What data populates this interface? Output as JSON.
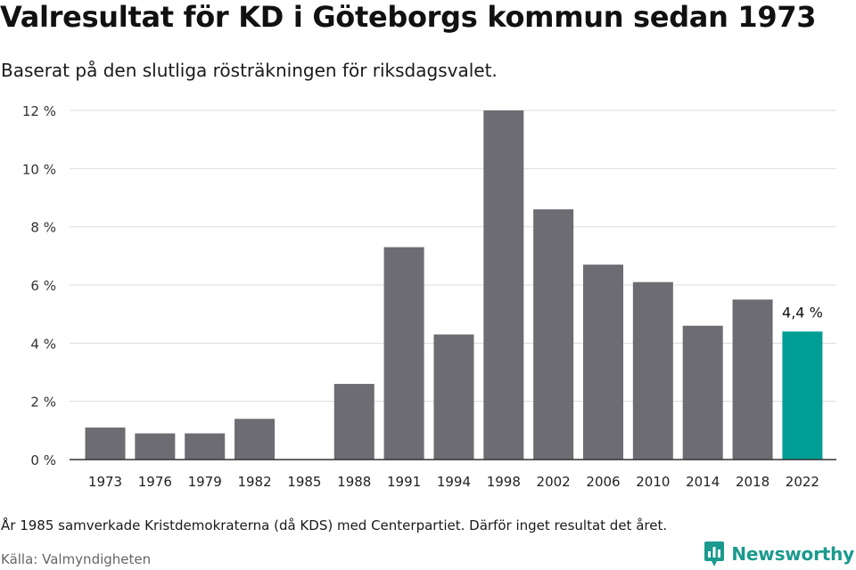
{
  "header": {
    "title": "Valresultat för KD i Göteborgs kommun sedan 1973",
    "subtitle": "Baserat på den slutliga rösträkningen för riksdagsvalet."
  },
  "chart_data": {
    "type": "bar",
    "title": "Valresultat för KD i Göteborgs kommun sedan 1973",
    "subtitle": "Baserat på den slutliga rösträkningen för riksdagsvalet.",
    "xlabel": "",
    "ylabel": "",
    "ylim": [
      0,
      12
    ],
    "yticks": [
      0,
      2,
      4,
      6,
      8,
      10,
      12
    ],
    "ytick_labels": [
      "0 %",
      "2 %",
      "4 %",
      "6 %",
      "8 %",
      "10 %",
      "12 %"
    ],
    "grid": true,
    "categories": [
      "1973",
      "1976",
      "1979",
      "1982",
      "1985",
      "1988",
      "1991",
      "1994",
      "1998",
      "2002",
      "2006",
      "2010",
      "2014",
      "2018",
      "2022"
    ],
    "values": [
      1.1,
      0.9,
      0.9,
      1.4,
      null,
      2.6,
      7.3,
      4.3,
      12.0,
      8.6,
      6.7,
      6.1,
      4.6,
      5.5,
      4.4
    ],
    "bar_color": "#6d6c72",
    "highlight_color": "#009e94",
    "highlight_index": 14,
    "annotation": "4,4 %"
  },
  "footer": {
    "note": "År 1985 samverkade Kristdemokraterna (då KDS) med Centerpartiet. Därför inget resultat det året.",
    "source": "Källa: Valmyndigheten",
    "brand": "Newsworthy",
    "brand_color": "#1a9a8e"
  }
}
